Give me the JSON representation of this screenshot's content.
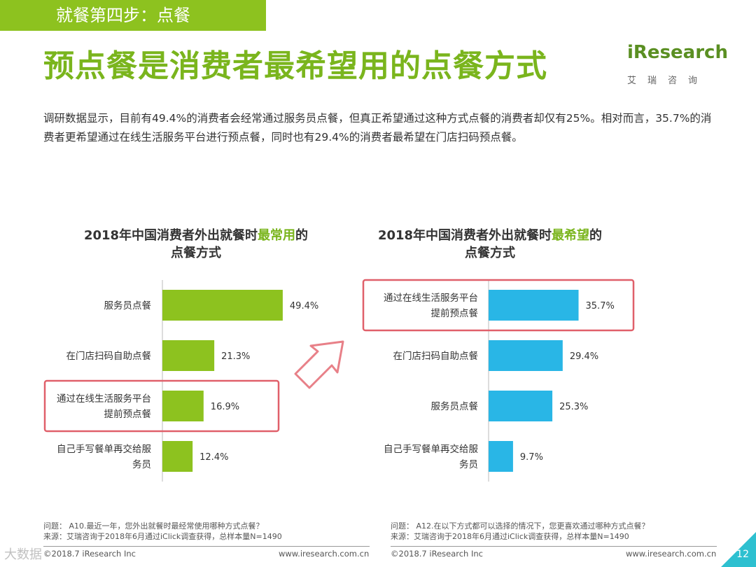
{
  "step_tab": "就餐第四步：点餐",
  "page_title": "预点餐是消费者最希望用的点餐方式",
  "logo": {
    "main": "iResearch",
    "sub": "艾瑞咨询"
  },
  "summary": "调研数据显示，目前有49.4%的消费者会经常通过服务员点餐，但真正希望通过这种方式点餐的消费者却仅有25%。相对而言，35.7%的消费者更希望通过在线生活服务平台进行预点餐，同时也有29.4%的消费者最希望在门店扫码预点餐。",
  "colors": {
    "green": "#8dc21f",
    "blue": "#29b6e6",
    "highlight_box": "#e0606a",
    "arrow": "#e88088"
  },
  "chart_data": [
    {
      "type": "bar",
      "orientation": "horizontal",
      "title_prefix": "2018年中国消费者外出就餐时",
      "title_highlight": "最常用",
      "title_suffix": "的",
      "title_line2": "点餐方式",
      "categories": [
        "服务员点餐",
        "在门店扫码自助点餐",
        "通过在线生活服务平台\n提前预点餐",
        "自己手写餐单再交给服\n务员"
      ],
      "values": [
        49.4,
        21.3,
        16.9,
        12.4
      ],
      "value_labels": [
        "49.4%",
        "21.3%",
        "16.9%",
        "12.4%"
      ],
      "highlighted_index": 2,
      "color": "#8dc21f",
      "xlim": [
        0,
        100
      ]
    },
    {
      "type": "bar",
      "orientation": "horizontal",
      "title_prefix": "2018年中国消费者外出就餐时",
      "title_highlight": "最希望",
      "title_suffix": "的",
      "title_line2": "点餐方式",
      "categories": [
        "通过在线生活服务平台\n提前预点餐",
        "在门店扫码自助点餐",
        "服务员点餐",
        "自己手写餐单再交给服\n务员"
      ],
      "values": [
        35.7,
        29.4,
        25.3,
        9.7
      ],
      "value_labels": [
        "35.7%",
        "29.4%",
        "25.3%",
        "9.7%"
      ],
      "highlighted_index": 0,
      "color": "#29b6e6",
      "xlim": [
        0,
        100
      ]
    }
  ],
  "notes_left": [
    "问题： A10.最近一年，您外出就餐时最经常使用哪种方式点餐？",
    "来源：艾瑞咨询于2018年6月通过iClick调查获得，总样本量N=1490"
  ],
  "notes_right": [
    "问题： A12.在以下方式都可以选择的情况下，您更喜欢通过哪种方式点餐？",
    "来源：艾瑞咨询于2018年6月通过iClick调查获得，总样本量N=1490"
  ],
  "footer": {
    "left_copyright": "©2018.7 iResearch Inc",
    "left_url": "www.iresearch.com.cn",
    "right_copyright": "©2018.7 iResearch Inc",
    "right_url": "www.iresearch.com.cn",
    "page_number": "12"
  },
  "watermark": "大数据"
}
